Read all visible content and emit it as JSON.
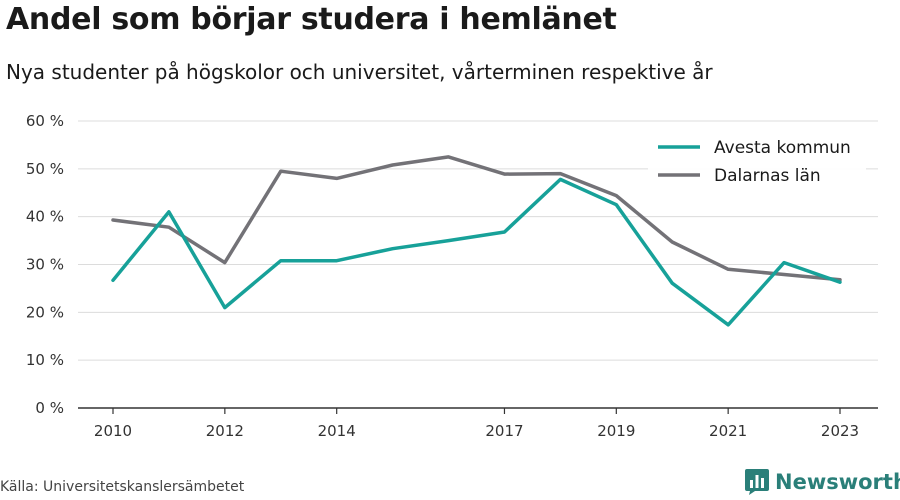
{
  "header": {
    "title": "Andel som börjar studera i hemlänet",
    "subtitle": "Nya studenter på högskolor och universitet, vårterminen respektive år"
  },
  "footer": {
    "source": "Källa: Universitetskanslersämbetet",
    "brand": "Newsworthy",
    "brand_icon": "bar-chart-logo-icon"
  },
  "colors": {
    "avesta": "#17a199",
    "dalarna": "#737277",
    "grid": "#dcdcdc",
    "axis": "#333333",
    "brand": "#2a7f79"
  },
  "chart_data": {
    "type": "line",
    "x": [
      2010,
      2011,
      2012,
      2013,
      2014,
      2015,
      2016,
      2017,
      2018,
      2019,
      2020,
      2021,
      2022,
      2023
    ],
    "x_tick_values": [
      2010,
      2012,
      2014,
      2017,
      2019,
      2021,
      2023
    ],
    "x_tick_labels": [
      "2010",
      "2012",
      "2014",
      "2017",
      "2019",
      "2021",
      "2023"
    ],
    "xlim": [
      2010,
      2023
    ],
    "ylim": [
      0,
      60
    ],
    "y_ticks": [
      0,
      10,
      20,
      30,
      40,
      50,
      60
    ],
    "y_tick_labels": [
      "0 %",
      "10 %",
      "20 %",
      "30 %",
      "40 %",
      "50 %",
      "60 %"
    ],
    "grid": true,
    "legend_position": "top-right",
    "series": [
      {
        "name": "Avesta kommun",
        "color": "#17a199",
        "values": [
          26.7,
          41.0,
          21.0,
          30.8,
          30.8,
          33.3,
          35.0,
          36.8,
          47.8,
          42.5,
          26.1,
          17.4,
          30.4,
          26.3
        ]
      },
      {
        "name": "Dalarnas län",
        "color": "#737277",
        "values": [
          39.3,
          37.8,
          30.4,
          49.5,
          48.0,
          50.8,
          52.5,
          48.9,
          49.0,
          44.4,
          34.7,
          29.0,
          27.9,
          26.8
        ]
      }
    ]
  }
}
